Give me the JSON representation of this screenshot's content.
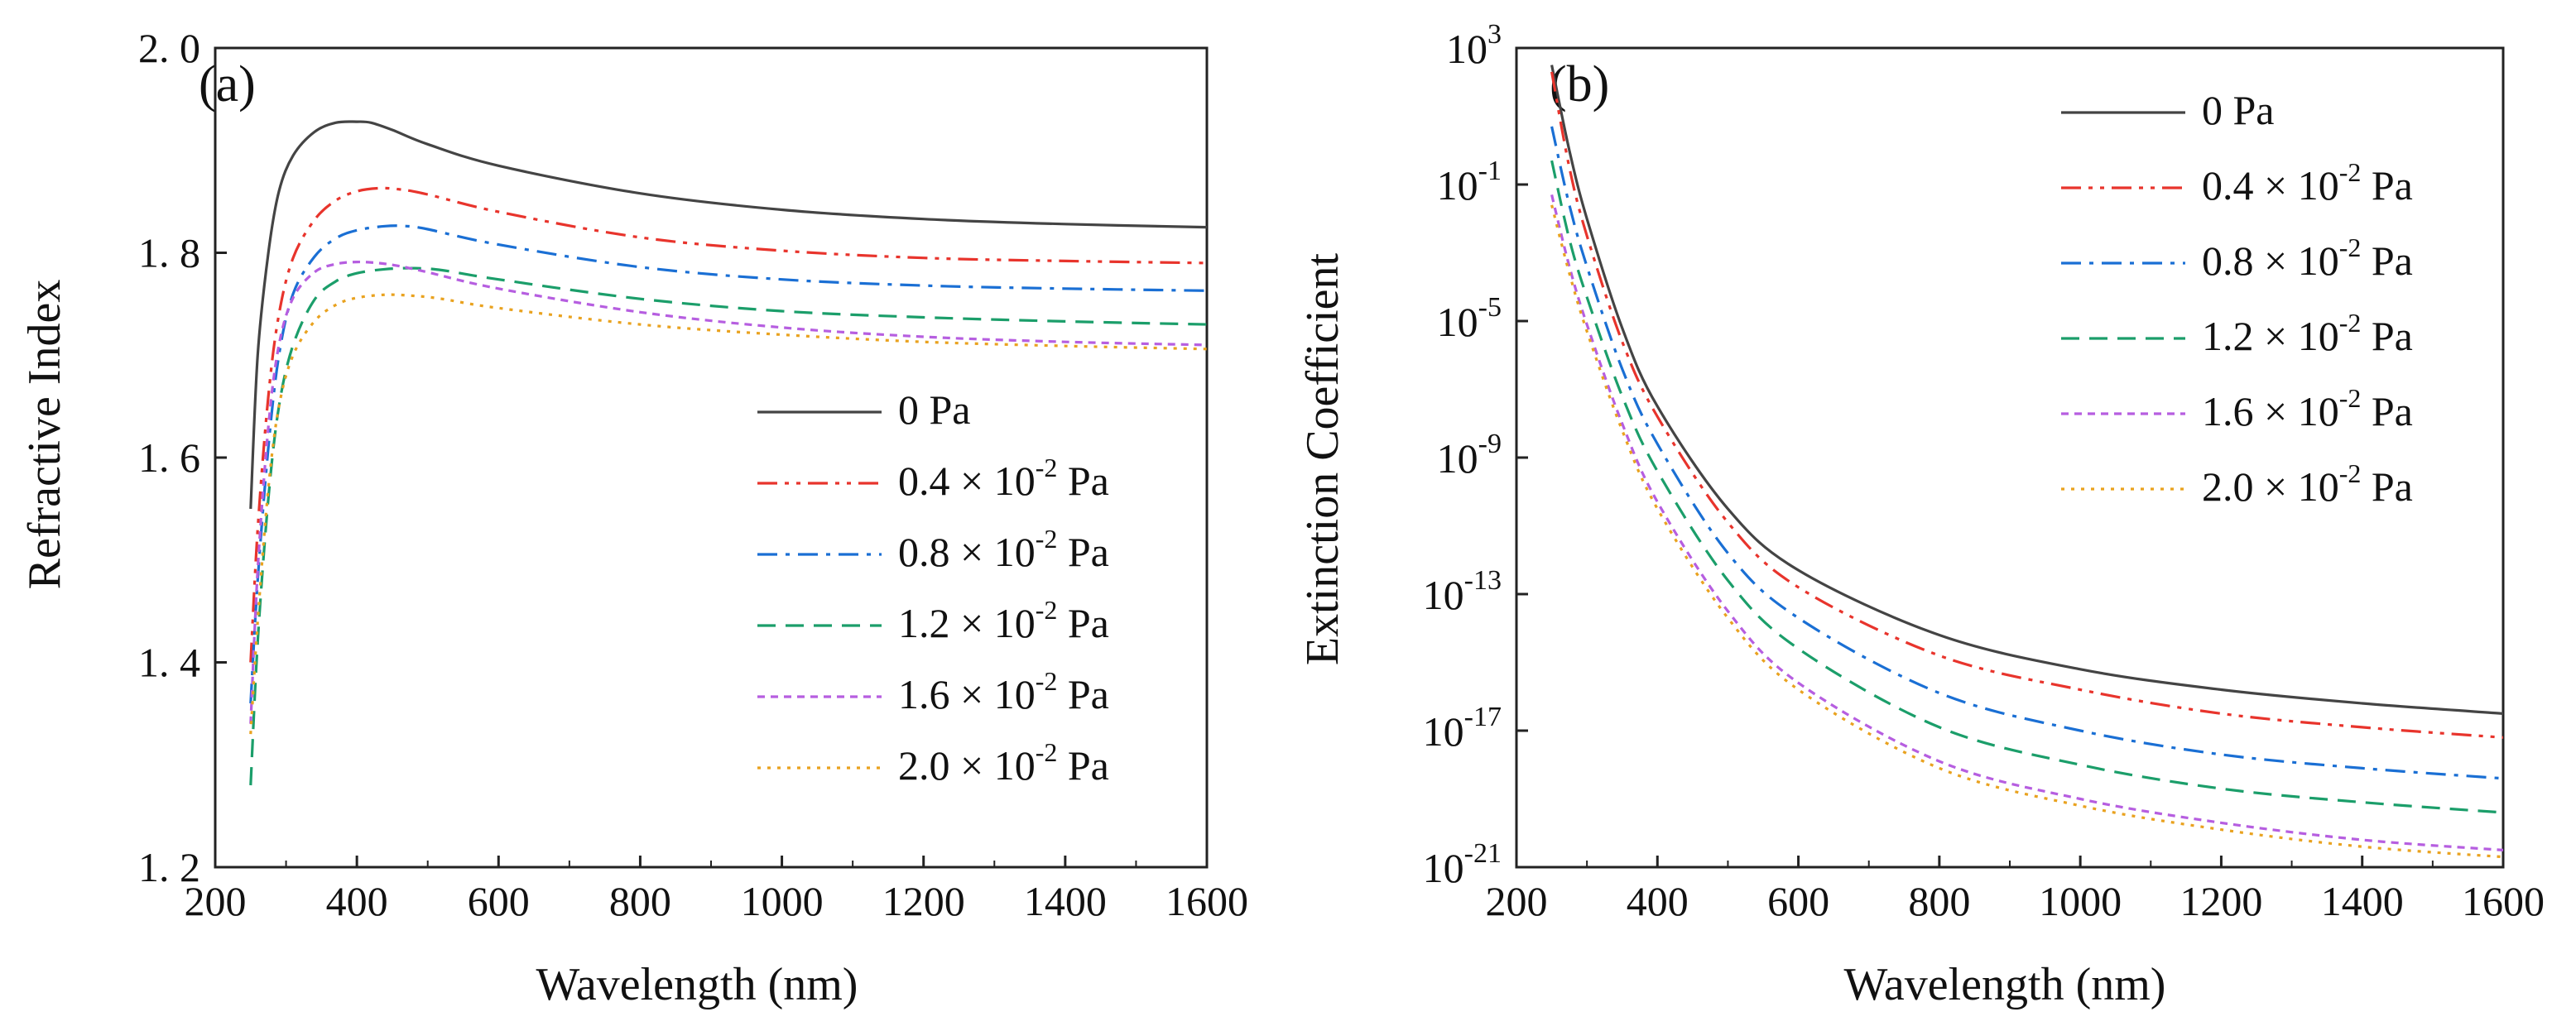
{
  "chart_data": [
    {
      "type": "line",
      "panel_label": "(a)",
      "xlabel": "Wavelength (nm)",
      "ylabel": "Refractive Index",
      "xlim": [
        200,
        1600
      ],
      "ylim": [
        1.2,
        2.0
      ],
      "xticks": [
        200,
        400,
        600,
        800,
        1000,
        1200,
        1400,
        1600
      ],
      "yticks": [
        1.2,
        1.4,
        1.6,
        1.8,
        2.0
      ],
      "ytick_labels": [
        "1. 2",
        "1. 4",
        "1. 6",
        "1. 8",
        "2. 0"
      ],
      "legend_position": "lower-right",
      "series": [
        {
          "name": "0  Pa",
          "base": "0  Pa",
          "exp": "",
          "unit": "",
          "color": "#444444",
          "dash": "solid",
          "x": [
            250,
            260,
            275,
            290,
            310,
            340,
            370,
            400,
            420,
            450,
            500,
            600,
            800,
            1000,
            1200,
            1400,
            1600
          ],
          "y": [
            1.55,
            1.7,
            1.8,
            1.86,
            1.895,
            1.918,
            1.927,
            1.928,
            1.927,
            1.92,
            1.906,
            1.885,
            1.858,
            1.842,
            1.833,
            1.828,
            1.825
          ]
        },
        {
          "name": "0.4 × 10-2 Pa",
          "base": "0.4 × 10",
          "exp": "-2",
          "unit": " Pa",
          "color": "#e8342c",
          "dash": "dashdotdot",
          "x": [
            250,
            260,
            275,
            290,
            310,
            340,
            370,
            400,
            430,
            460,
            500,
            600,
            800,
            1000,
            1200,
            1400,
            1600
          ],
          "y": [
            1.4,
            1.53,
            1.66,
            1.74,
            1.795,
            1.832,
            1.851,
            1.86,
            1.863,
            1.862,
            1.857,
            1.84,
            1.815,
            1.802,
            1.795,
            1.792,
            1.79
          ]
        },
        {
          "name": "0.8 × 10-2 Pa",
          "base": "0.8 × 10",
          "exp": "-2",
          "unit": " Pa",
          "color": "#1a6fd4",
          "dash": "dashdot",
          "x": [
            250,
            260,
            275,
            290,
            310,
            340,
            370,
            400,
            440,
            470,
            500,
            600,
            800,
            1000,
            1200,
            1400,
            1600
          ],
          "y": [
            1.36,
            1.48,
            1.61,
            1.7,
            1.76,
            1.796,
            1.814,
            1.822,
            1.826,
            1.826,
            1.823,
            1.808,
            1.786,
            1.774,
            1.768,
            1.765,
            1.763
          ]
        },
        {
          "name": "1.2 × 10-2 Pa",
          "base": "1.2 × 10",
          "exp": "-2",
          "unit": " Pa",
          "color": "#1b9e6a",
          "dash": "dashed",
          "x": [
            250,
            260,
            275,
            290,
            310,
            340,
            370,
            400,
            440,
            480,
            520,
            600,
            800,
            1000,
            1200,
            1400,
            1600
          ],
          "y": [
            1.28,
            1.42,
            1.56,
            1.65,
            1.71,
            1.754,
            1.772,
            1.78,
            1.784,
            1.785,
            1.783,
            1.774,
            1.755,
            1.743,
            1.737,
            1.733,
            1.73
          ]
        },
        {
          "name": "1.6 × 10-2 Pa",
          "base": "1.6 × 10",
          "exp": "-2",
          "unit": " Pa",
          "color": "#b65ee0",
          "dash": "shortdash",
          "x": [
            250,
            260,
            275,
            290,
            310,
            340,
            370,
            400,
            430,
            460,
            500,
            600,
            800,
            1000,
            1200,
            1400,
            1600
          ],
          "y": [
            1.34,
            1.49,
            1.63,
            1.71,
            1.756,
            1.781,
            1.789,
            1.791,
            1.79,
            1.787,
            1.781,
            1.765,
            1.742,
            1.727,
            1.718,
            1.713,
            1.71
          ]
        },
        {
          "name": "2.0 × 10-2 Pa",
          "base": "2.0 × 10",
          "exp": "-2",
          "unit": " Pa",
          "color": "#e9a21f",
          "dash": "dotted",
          "x": [
            250,
            260,
            275,
            290,
            310,
            340,
            370,
            400,
            440,
            480,
            520,
            600,
            800,
            1000,
            1200,
            1400,
            1600
          ],
          "y": [
            1.33,
            1.44,
            1.57,
            1.65,
            1.7,
            1.733,
            1.749,
            1.756,
            1.759,
            1.758,
            1.755,
            1.746,
            1.73,
            1.72,
            1.713,
            1.709,
            1.706
          ]
        }
      ]
    },
    {
      "type": "line",
      "panel_label": "(b)",
      "xlabel": "Wavelength (nm)",
      "ylabel": "Extinction Coefficient",
      "xlim": [
        200,
        1600
      ],
      "ylim": [
        -21,
        3
      ],
      "yscale": "log10",
      "xticks": [
        200,
        400,
        600,
        800,
        1000,
        1200,
        1400,
        1600
      ],
      "yticks_exp": [
        -21,
        -17,
        -13,
        -9,
        -5,
        -1,
        3
      ],
      "ytick_labels": [
        "-21",
        "-17",
        "-13",
        "-9",
        "-5",
        "-1",
        "3"
      ],
      "legend_position": "top-right",
      "series": [
        {
          "name": "0  Pa",
          "base": "0  Pa",
          "exp": "",
          "unit": "",
          "color": "#444444",
          "dash": "solid",
          "x": [
            250,
            275,
            300,
            350,
            400,
            500,
            600,
            800,
            1000,
            1200,
            1400,
            1600
          ],
          "log10_y": [
            2.5,
            0.0,
            -2.0,
            -5.2,
            -7.5,
            -10.5,
            -12.3,
            -14.2,
            -15.2,
            -15.8,
            -16.2,
            -16.5
          ]
        },
        {
          "name": "0.4 × 10-2 Pa",
          "base": "0.4 × 10",
          "exp": "-2",
          "unit": " Pa",
          "color": "#e8342c",
          "dash": "dashdotdot",
          "x": [
            250,
            275,
            300,
            350,
            400,
            500,
            600,
            800,
            1000,
            1200,
            1400,
            1600
          ],
          "log10_y": [
            2.3,
            -0.5,
            -2.5,
            -5.6,
            -7.8,
            -10.9,
            -12.8,
            -14.8,
            -15.8,
            -16.5,
            -16.9,
            -17.2
          ]
        },
        {
          "name": "0.8 × 10-2 Pa",
          "base": "0.8 × 10",
          "exp": "-2",
          "unit": " Pa",
          "color": "#1a6fd4",
          "dash": "dashdot",
          "x": [
            250,
            275,
            300,
            350,
            400,
            500,
            600,
            800,
            1000,
            1200,
            1400,
            1600
          ],
          "log10_y": [
            0.7,
            -1.6,
            -3.4,
            -6.4,
            -8.6,
            -11.8,
            -13.7,
            -15.9,
            -17.0,
            -17.7,
            -18.1,
            -18.4
          ]
        },
        {
          "name": "1.2 × 10-2 Pa",
          "base": "1.2 × 10",
          "exp": "-2",
          "unit": " Pa",
          "color": "#1b9e6a",
          "dash": "dashed",
          "x": [
            250,
            275,
            300,
            350,
            400,
            500,
            600,
            800,
            1000,
            1200,
            1400,
            1600
          ],
          "log10_y": [
            -0.3,
            -2.6,
            -4.3,
            -7.2,
            -9.4,
            -12.6,
            -14.6,
            -16.9,
            -18.0,
            -18.7,
            -19.1,
            -19.4
          ]
        },
        {
          "name": "1.6 × 10-2 Pa",
          "base": "1.6 × 10",
          "exp": "-2",
          "unit": " Pa",
          "color": "#b65ee0",
          "dash": "shortdash",
          "x": [
            250,
            275,
            300,
            350,
            400,
            500,
            600,
            800,
            1000,
            1200,
            1400,
            1600
          ],
          "log10_y": [
            -1.3,
            -3.4,
            -5.1,
            -8.0,
            -10.3,
            -13.5,
            -15.6,
            -17.9,
            -19.0,
            -19.7,
            -20.2,
            -20.5
          ]
        },
        {
          "name": "2.0 × 10-2 Pa",
          "base": "2.0 × 10",
          "exp": "-2",
          "unit": " Pa",
          "color": "#e9a21f",
          "dash": "dotted",
          "x": [
            250,
            275,
            300,
            350,
            400,
            500,
            600,
            800,
            1000,
            1200,
            1400,
            1600
          ],
          "log10_y": [
            -1.6,
            -3.6,
            -5.3,
            -8.2,
            -10.5,
            -13.7,
            -15.8,
            -18.1,
            -19.2,
            -19.9,
            -20.4,
            -20.7
          ]
        }
      ]
    }
  ]
}
